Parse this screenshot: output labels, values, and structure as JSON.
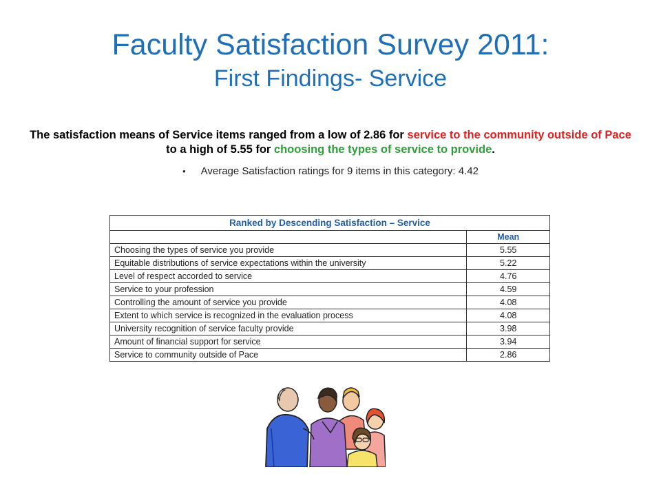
{
  "title": {
    "line1": "Faculty Satisfaction Survey 2011:",
    "line2": "First Findings- Service"
  },
  "summary": {
    "part1": "The satisfaction means of Service items ranged from a low of 2.86 for ",
    "red_text": "service to the community outside of Pace",
    "part2": " to a high of 5.55 for ",
    "green_text": "choosing the types of service to provide",
    "part3": "."
  },
  "bullet": "Average Satisfaction ratings for 9 items in this category:  4.42",
  "table": {
    "title": "Ranked by Descending Satisfaction – Service",
    "mean_header": "Mean",
    "rows": [
      {
        "item": "Choosing the types of service you provide",
        "mean": "5.55"
      },
      {
        "item": "Equitable distributions of service expectations within the university",
        "mean": "5.22"
      },
      {
        "item": "Level of respect accorded to service",
        "mean": "4.76"
      },
      {
        "item": "Service to your profession",
        "mean": "4.59"
      },
      {
        "item": "Controlling the amount of service you provide",
        "mean": "4.08"
      },
      {
        "item": "Extent to which service is recognized in the evaluation process",
        "mean": "4.08"
      },
      {
        "item": "University recognition of service faculty provide",
        "mean": "3.98"
      },
      {
        "item": "Amount of financial support for service",
        "mean": "3.94"
      },
      {
        "item": "Service to community outside of Pace",
        "mean": "2.86"
      }
    ]
  },
  "colors": {
    "title": "#1f6fb8",
    "red": "#e01f1f",
    "green": "#2f9e3a",
    "table_header": "#1f5fa8"
  },
  "clipart_icon": "group-of-people-clipart"
}
